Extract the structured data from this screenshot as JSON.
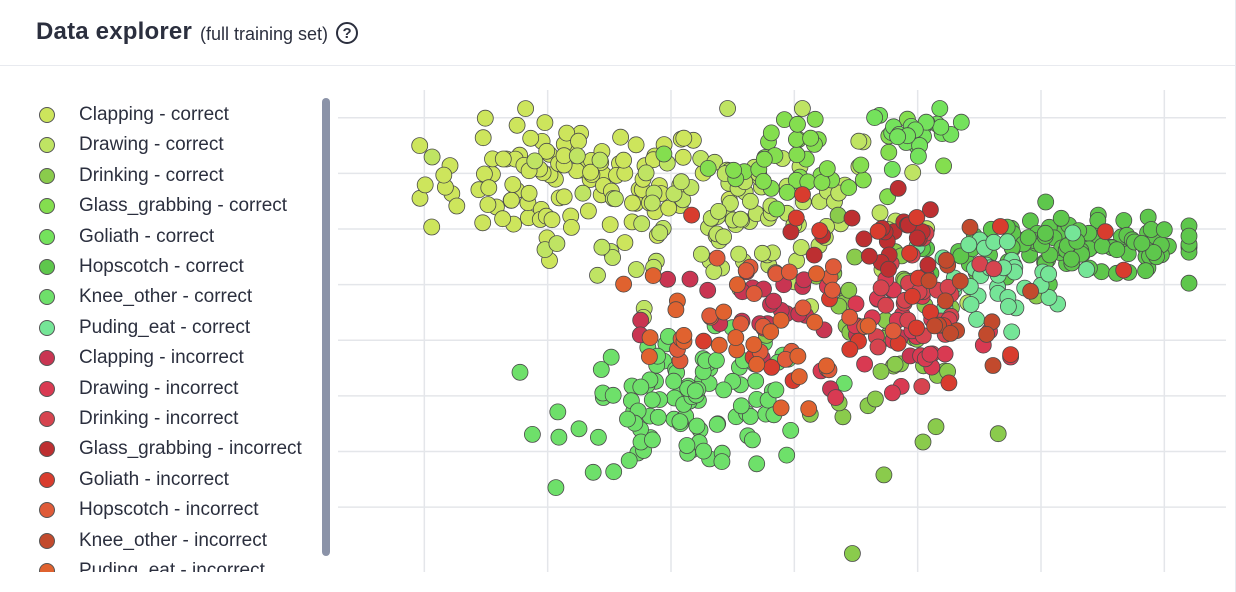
{
  "header": {
    "title": "Data explorer",
    "subtitle": "(full training set)",
    "help_icon": "question-circle-icon",
    "help_glyph": "?"
  },
  "legend": {
    "items": [
      {
        "label": "Clapping - correct",
        "color": "#cde55c"
      },
      {
        "label": "Drawing - correct",
        "color": "#bfe463"
      },
      {
        "label": "Drinking - correct",
        "color": "#8acb4c"
      },
      {
        "label": "Glass_grabbing - correct",
        "color": "#84de4f"
      },
      {
        "label": "Goliath - correct",
        "color": "#74e25c"
      },
      {
        "label": "Hopscotch - correct",
        "color": "#5ec74c"
      },
      {
        "label": "Knee_other - correct",
        "color": "#6ee06a"
      },
      {
        "label": "Puding_eat - correct",
        "color": "#75e597"
      },
      {
        "label": "Clapping - incorrect",
        "color": "#c93552"
      },
      {
        "label": "Drawing - incorrect",
        "color": "#d93a52"
      },
      {
        "label": "Drinking - incorrect",
        "color": "#d6444f"
      },
      {
        "label": "Glass_grabbing - incorrect",
        "color": "#bd2f31"
      },
      {
        "label": "Goliath - incorrect",
        "color": "#d83c2e"
      },
      {
        "label": "Hopscotch - incorrect",
        "color": "#df5b39"
      },
      {
        "label": "Knee_other - incorrect",
        "color": "#c24a2d"
      },
      {
        "label": "Puding_eat - incorrect",
        "color": "#e0622f"
      }
    ]
  },
  "chart_data": {
    "type": "scatter",
    "title": "",
    "xlabel": "",
    "ylabel": "",
    "xlim": [
      -4.2,
      3.0
    ],
    "ylim": [
      -3.2,
      2.0
    ],
    "grid": true,
    "legend_position": "left",
    "series": [
      {
        "name": "Clapping - correct",
        "cx": -2.3,
        "cy": 1.0,
        "sx": 0.6,
        "sy": 0.32,
        "n": 110
      },
      {
        "name": "Drawing - correct",
        "cx": -1.0,
        "cy": 0.7,
        "sx": 0.7,
        "sy": 0.5,
        "n": 110
      },
      {
        "name": "Drinking - correct",
        "cx": 0.2,
        "cy": -0.7,
        "sx": 0.4,
        "sy": 0.6,
        "n": 45
      },
      {
        "name": "Glass_grabbing - correct",
        "cx": -0.4,
        "cy": 1.25,
        "sx": 0.4,
        "sy": 0.25,
        "n": 40
      },
      {
        "name": "Goliath - correct",
        "cx": 0.5,
        "cy": 1.55,
        "sx": 0.2,
        "sy": 0.12,
        "n": 25
      },
      {
        "name": "Hopscotch - correct",
        "cx": 1.8,
        "cy": 0.3,
        "sx": 0.6,
        "sy": 0.15,
        "n": 110
      },
      {
        "name": "Knee_other - correct",
        "cx": -1.3,
        "cy": -1.4,
        "sx": 0.5,
        "sy": 0.35,
        "n": 110
      },
      {
        "name": "Puding_eat - correct",
        "cx": 1.05,
        "cy": -0.05,
        "sx": 0.35,
        "sy": 0.25,
        "n": 40
      },
      {
        "name": "Clapping - incorrect",
        "cx": -0.6,
        "cy": -0.5,
        "sx": 0.55,
        "sy": 0.4,
        "n": 30
      },
      {
        "name": "Drawing - incorrect",
        "cx": 0.4,
        "cy": -0.6,
        "sx": 0.4,
        "sy": 0.45,
        "n": 30
      },
      {
        "name": "Drinking - incorrect",
        "cx": 0.6,
        "cy": -0.2,
        "sx": 0.35,
        "sy": 0.35,
        "n": 25
      },
      {
        "name": "Glass_grabbing - incorrect",
        "cx": 0.2,
        "cy": 0.4,
        "sx": 0.25,
        "sy": 0.3,
        "n": 22
      },
      {
        "name": "Goliath - incorrect",
        "cx": 0.5,
        "cy": 0.0,
        "sx": 0.7,
        "sy": 0.6,
        "n": 25
      },
      {
        "name": "Hopscotch - incorrect",
        "cx": -0.8,
        "cy": -0.4,
        "sx": 0.6,
        "sy": 0.45,
        "n": 25
      },
      {
        "name": "Knee_other - incorrect",
        "cx": 0.7,
        "cy": -0.3,
        "sx": 0.35,
        "sy": 0.35,
        "n": 14
      },
      {
        "name": "Puding_eat - incorrect",
        "cx": -1.2,
        "cy": -0.7,
        "sx": 0.55,
        "sy": 0.4,
        "n": 25
      }
    ]
  }
}
